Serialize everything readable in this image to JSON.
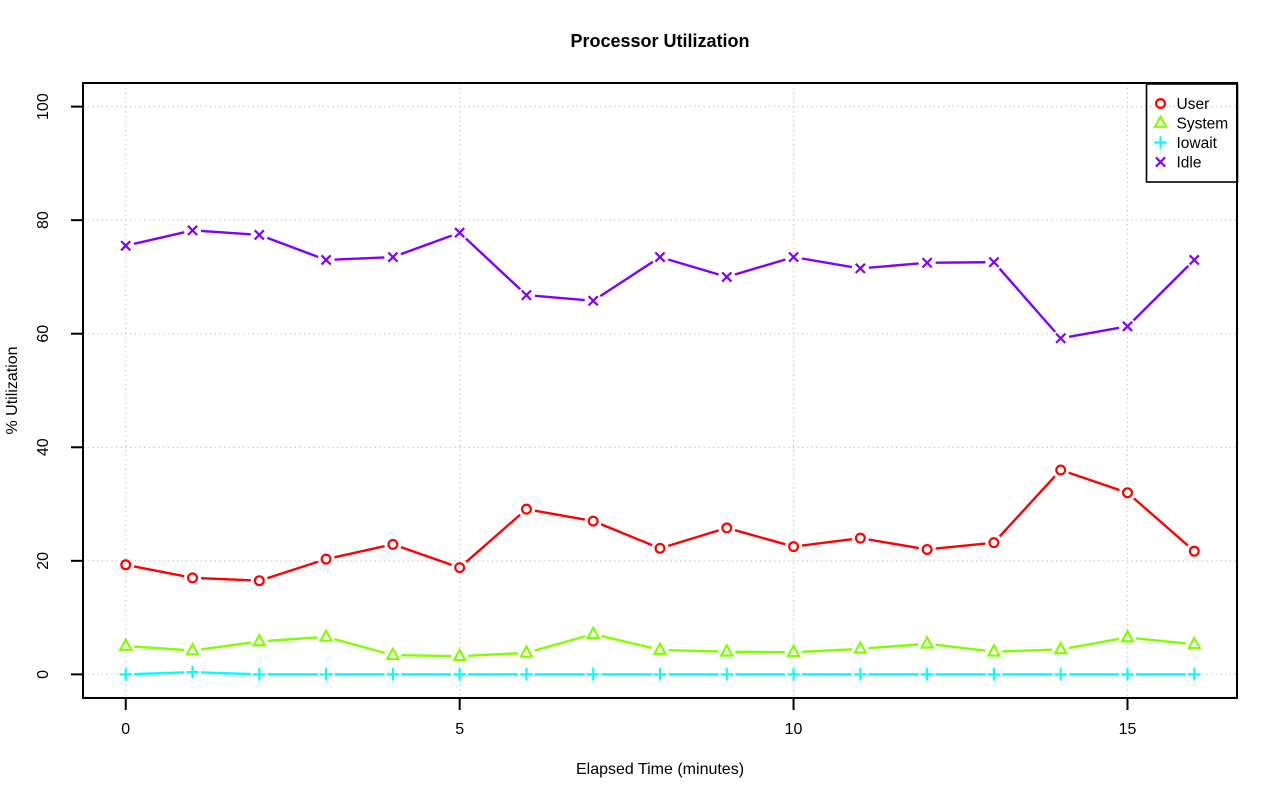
{
  "chart_data": {
    "type": "line",
    "title": "Processor Utilization",
    "xlabel": "Elapsed Time (minutes)",
    "ylabel": "% Utilization",
    "x": [
      0,
      1,
      2,
      3,
      4,
      5,
      6,
      7,
      8,
      9,
      10,
      11,
      12,
      13,
      14,
      15,
      16
    ],
    "series": [
      {
        "name": "User",
        "marker": "circle",
        "color": "#ff0000",
        "values": [
          19.3,
          17.0,
          16.5,
          20.3,
          22.9,
          18.8,
          29.1,
          27.0,
          22.2,
          25.8,
          22.5,
          24.0,
          22.0,
          23.2,
          36.0,
          32.0,
          21.7
        ]
      },
      {
        "name": "System",
        "marker": "triangle",
        "color": "#80ff00",
        "values": [
          5.0,
          4.2,
          5.8,
          6.6,
          3.4,
          3.2,
          3.8,
          7.1,
          4.3,
          4.0,
          3.9,
          4.5,
          5.4,
          4.0,
          4.4,
          6.5,
          5.3
        ]
      },
      {
        "name": "Iowait",
        "marker": "plus",
        "color": "#00ffff",
        "values": [
          0.0,
          0.4,
          0.0,
          0.0,
          0.0,
          0.0,
          0.0,
          0.0,
          0.0,
          0.0,
          0.0,
          0.0,
          0.0,
          0.0,
          0.0,
          0.0,
          0.0
        ]
      },
      {
        "name": "Idle",
        "marker": "x",
        "color": "#8000ff",
        "values": [
          75.5,
          78.2,
          77.4,
          73.0,
          73.5,
          77.8,
          66.8,
          65.8,
          73.5,
          70.0,
          73.5,
          71.5,
          72.5,
          72.6,
          59.2,
          61.3,
          73.0
        ]
      }
    ],
    "xticks": [
      0,
      5,
      10,
      15
    ],
    "yticks": [
      0,
      20,
      40,
      60,
      80,
      100
    ],
    "xlim": [
      -0.64,
      16.64
    ],
    "ylim": [
      -4.16,
      104.16
    ],
    "grid": true,
    "grid_style": "dotted",
    "grid_color": "#d2d2d2",
    "axis_color": "#000000",
    "background_color": "#ffffff",
    "legend_position": "topright"
  }
}
